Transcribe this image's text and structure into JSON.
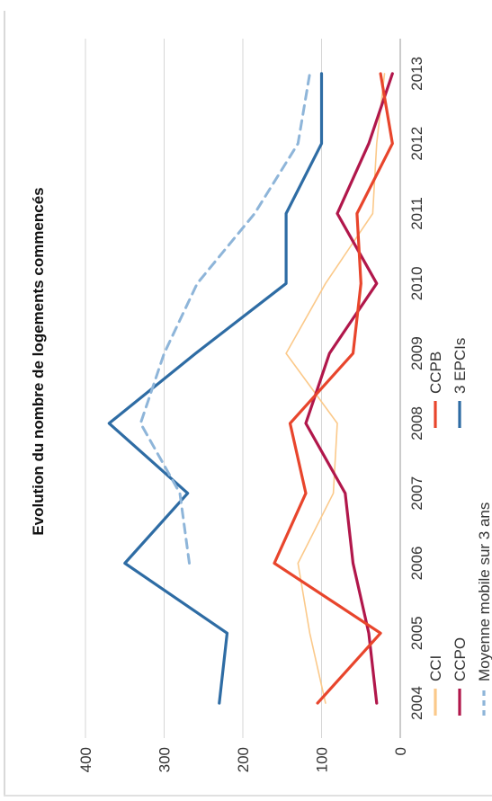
{
  "chart_data": {
    "type": "line",
    "title": "Evolution du nombre de logements commencés",
    "xlabel": "",
    "ylabel": "",
    "x": [
      "2004",
      "2005",
      "2006",
      "2007",
      "2008",
      "2009",
      "2010",
      "2011",
      "2012",
      "2013"
    ],
    "ylim": [
      0,
      400
    ],
    "yticks": [
      0,
      100,
      200,
      300,
      400
    ],
    "grid": true,
    "legend_position": "bottom",
    "series": [
      {
        "name": "CCI",
        "color": "#fbc98a",
        "style": "solid",
        "values": [
          95,
          115,
          130,
          85,
          80,
          145,
          95,
          35,
          30,
          20
        ]
      },
      {
        "name": "CCPB",
        "color": "#e8452c",
        "style": "solid",
        "values": [
          105,
          25,
          160,
          120,
          140,
          60,
          50,
          55,
          10,
          25
        ]
      },
      {
        "name": "CCPO",
        "color": "#b1174b",
        "style": "solid",
        "values": [
          30,
          40,
          60,
          70,
          120,
          90,
          30,
          80,
          40,
          10
        ]
      },
      {
        "name": "3 EPCIs",
        "color": "#2e6ca4",
        "style": "solid",
        "values": [
          230,
          220,
          350,
          270,
          370,
          260,
          145,
          145,
          100,
          100
        ]
      },
      {
        "name": "Moyenne mobile sur 3 ans",
        "color": "#8eb5d9",
        "style": "dashed",
        "values": [
          null,
          null,
          268,
          280,
          330,
          300,
          258,
          185,
          130,
          115
        ]
      }
    ]
  }
}
